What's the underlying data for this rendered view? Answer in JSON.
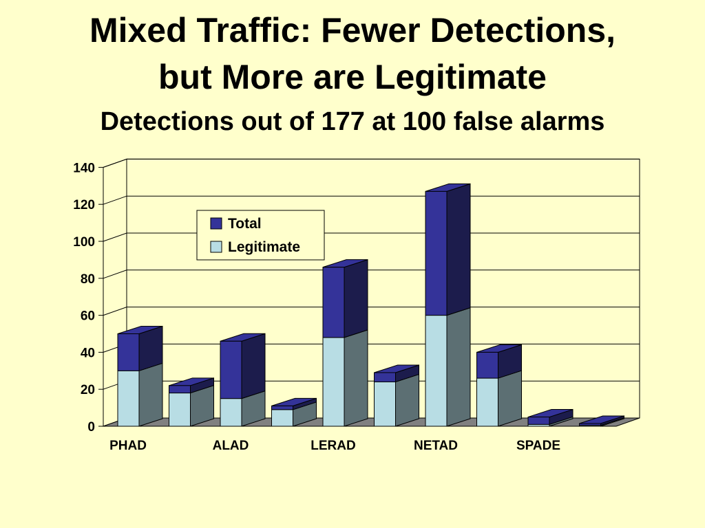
{
  "title": {
    "line1": "Mixed Traffic: Fewer Detections,",
    "line2": "but More are Legitimate",
    "subtitle": "Detections out of 177 at 100 false alarms"
  },
  "chart_data": {
    "type": "bar",
    "stacked": true,
    "style": "3d",
    "categories": [
      "PHAD",
      "",
      "ALAD",
      "",
      "LERAD",
      "",
      "NETAD",
      "",
      "SPADE",
      ""
    ],
    "series": [
      {
        "name": "Legitimate",
        "values": [
          30,
          18,
          15,
          9,
          48,
          24,
          60,
          26,
          1,
          0.5
        ],
        "color": "#b8dde4"
      },
      {
        "name": "Total",
        "values": [
          50,
          22,
          46,
          11,
          86,
          29,
          127,
          40,
          5,
          1.5
        ],
        "color": "#343399"
      }
    ],
    "yticks": [
      0,
      20,
      40,
      60,
      80,
      100,
      120,
      140
    ],
    "ylim": [
      0,
      140
    ],
    "grid": true,
    "legend_position": "upper-left inside plot"
  },
  "colors": {
    "background": "#ffffcc",
    "legit_front": "#b8dde4",
    "legit_side": "#5c6f73",
    "total_front": "#343399",
    "total_side": "#1c1c4c",
    "floor": "#808080",
    "plot_bg": "#ffffcc"
  }
}
